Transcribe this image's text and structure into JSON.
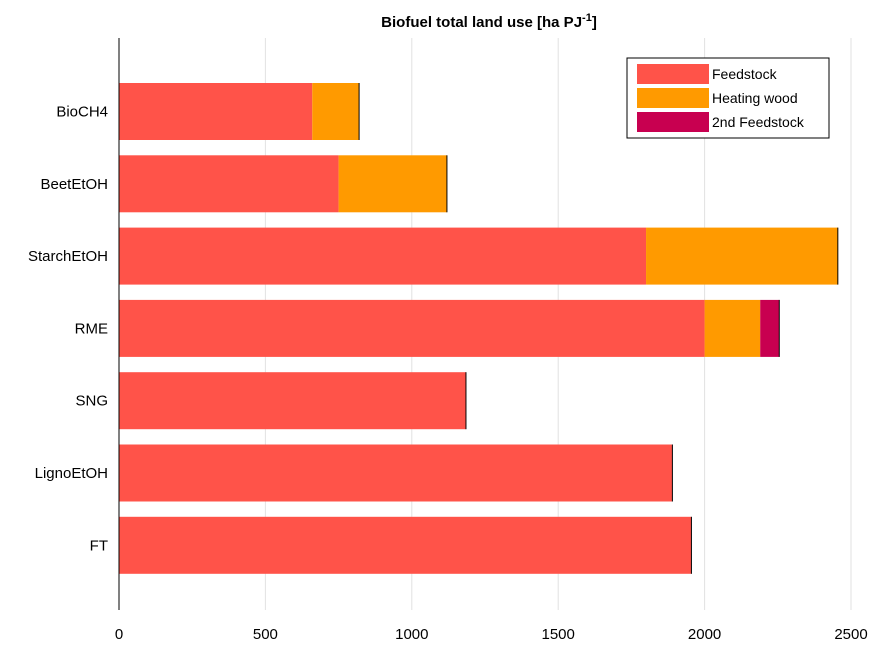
{
  "chart_data": {
    "type": "bar",
    "orientation": "horizontal",
    "stacked": true,
    "title": "Biofuel total land use [ha PJ",
    "title_superscript": "-1",
    "title_suffix": "]",
    "categories": [
      "BioCH4",
      "BeetEtOH",
      "StarchEtOH",
      "RME",
      "SNG",
      "LignoEtOH",
      "FT"
    ],
    "series": [
      {
        "name": "Feedstock",
        "color": "#ff5349",
        "values": [
          660,
          750,
          1800,
          2000,
          1185,
          1890,
          1955
        ]
      },
      {
        "name": "Heating wood",
        "color": "#ff9a00",
        "values": [
          160,
          370,
          655,
          190,
          0,
          0,
          0
        ]
      },
      {
        "name": "2nd Feedstock",
        "color": "#c80050",
        "values": [
          0,
          0,
          0,
          65,
          0,
          0,
          0
        ]
      }
    ],
    "xlim": [
      0,
      2500
    ],
    "xticks": [
      0,
      500,
      1000,
      1500,
      2000,
      2500
    ],
    "grid": true,
    "legend_position": "top-right"
  }
}
